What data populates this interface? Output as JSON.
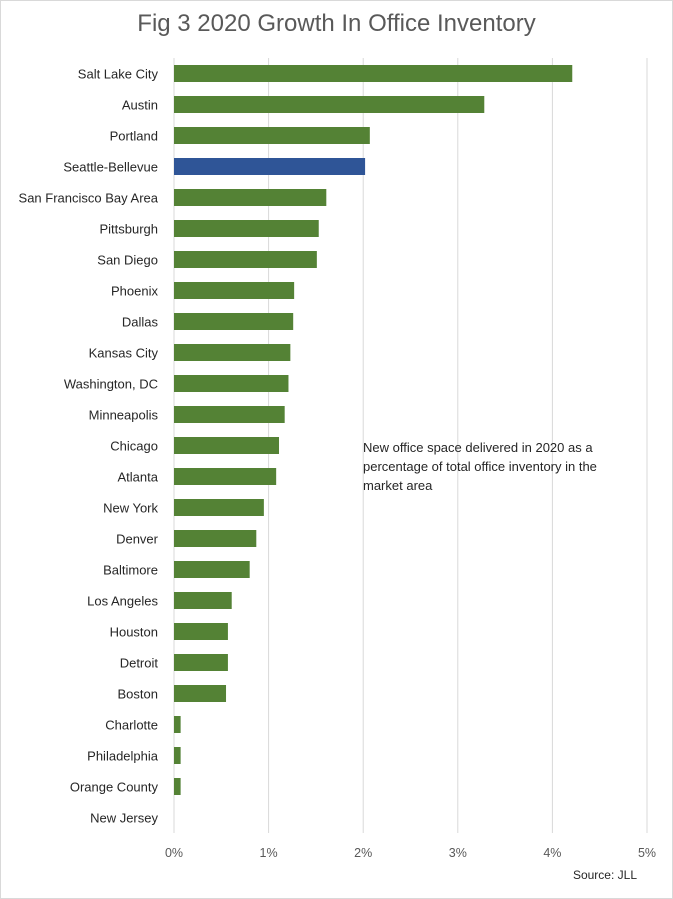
{
  "chart_data": {
    "type": "bar",
    "orientation": "horizontal",
    "title": "Fig 3 2020 Growth In Office Inventory",
    "annotation": "New office space delivered in 2020 as a percentage of total office inventory in the market area",
    "source": "Source: JLL",
    "categories": [
      "Salt Lake City",
      "Austin",
      "Portland",
      "Seattle-Bellevue",
      "San Francisco Bay Area",
      "Pittsburgh",
      "San Diego",
      "Phoenix",
      "Dallas",
      "Kansas City",
      "Washington, DC",
      "Minneapolis",
      "Chicago",
      "Atlanta",
      "New York",
      "Denver",
      "Baltimore",
      "Los Angeles",
      "Houston",
      "Detroit",
      "Boston",
      "Charlotte",
      "Philadelphia",
      "Orange County",
      "New Jersey"
    ],
    "values": [
      4.21,
      3.28,
      2.07,
      2.02,
      1.61,
      1.53,
      1.51,
      1.27,
      1.26,
      1.23,
      1.21,
      1.17,
      1.11,
      1.08,
      0.95,
      0.87,
      0.8,
      0.61,
      0.57,
      0.57,
      0.55,
      0.07,
      0.07,
      0.07,
      0.0
    ],
    "highlight_category": "Seattle-Bellevue",
    "xlim": [
      0,
      5
    ],
    "xticks": [
      "0%",
      "1%",
      "2%",
      "3%",
      "4%",
      "5%"
    ],
    "grid": true,
    "colors": {
      "bar": "#548235",
      "highlight": "#2f5597",
      "grid": "#d9d9d9"
    }
  }
}
